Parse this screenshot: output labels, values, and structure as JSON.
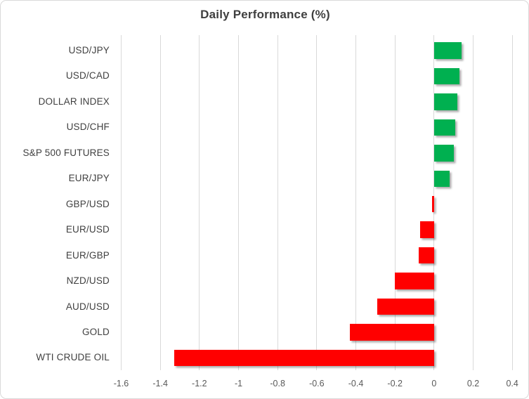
{
  "chart_data": {
    "type": "bar",
    "orientation": "horizontal",
    "title": "Daily Performance (%)",
    "categories": [
      "USD/JPY",
      "USD/CAD",
      "DOLLAR INDEX",
      "USD/CHF",
      "S&P 500 FUTURES",
      "EUR/JPY",
      "GBP/USD",
      "EUR/USD",
      "EUR/GBP",
      "NZD/USD",
      "AUD/USD",
      "GOLD",
      "WTI CRUDE OIL"
    ],
    "values": [
      0.14,
      0.13,
      0.12,
      0.11,
      0.1,
      0.08,
      -0.01,
      -0.07,
      -0.08,
      -0.2,
      -0.29,
      -0.43,
      -1.33
    ],
    "xlabel": "",
    "ylabel": "",
    "xlim": [
      -1.6,
      0.4
    ],
    "x_ticks": [
      -1.6,
      -1.4,
      -1.2,
      -1.0,
      -0.8,
      -0.6,
      -0.4,
      -0.2,
      0,
      0.2,
      0.4
    ],
    "x_tick_labels": [
      "-1.6",
      "-1.4",
      "-1.2",
      "-1",
      "-0.8",
      "-0.6",
      "-0.4",
      "-0.2",
      "0",
      "0.2",
      "0.4"
    ],
    "grid": true,
    "legend": false,
    "colors": {
      "positive": "#00B050",
      "negative": "#FF0000",
      "gridline": "#D9D9D9",
      "title": "#3F3F3F",
      "category_label": "#404040",
      "tick_label": "#595959",
      "border": "#D9D9D9",
      "background": "#FFFFFF"
    }
  }
}
